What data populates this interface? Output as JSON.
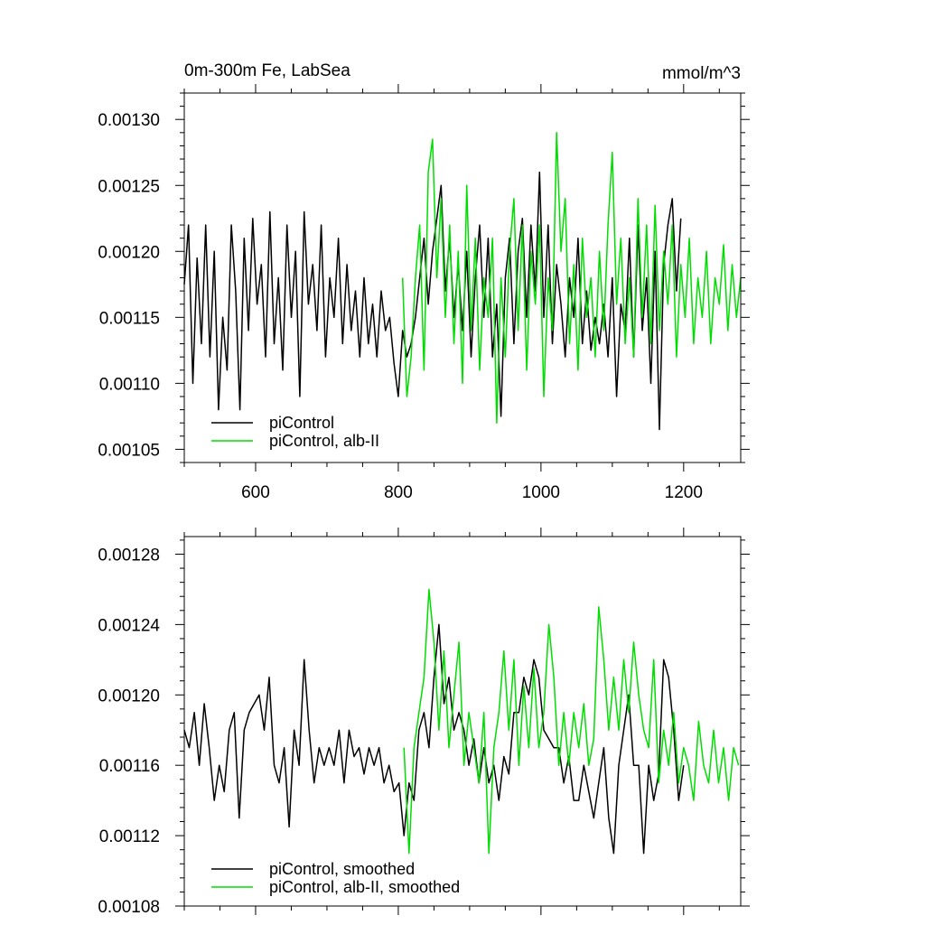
{
  "chart_data": [
    {
      "type": "line",
      "title_left": "0m-300m Fe, LabSea",
      "title_right": "mmol/m^3",
      "xlim": [
        500,
        1280
      ],
      "ylim": [
        0.00104,
        0.00132
      ],
      "x_ticks": [
        600,
        800,
        1000,
        1200
      ],
      "x_tick_labels": [
        "600",
        "800",
        "1000",
        "1200"
      ],
      "y_ticks": [
        0.00105,
        0.0011,
        0.00115,
        0.0012,
        0.00125,
        0.0013
      ],
      "y_tick_labels": [
        "0.00105",
        "0.00110",
        "0.00115",
        "0.00120",
        "0.00125",
        "0.00130"
      ],
      "grid": false,
      "legend_position": "bottom-left",
      "series": [
        {
          "name": "piControl",
          "color": "#000000",
          "x": [
            500,
            506,
            512,
            518,
            524,
            530,
            536,
            542,
            548,
            554,
            560,
            566,
            572,
            578,
            584,
            590,
            596,
            602,
            608,
            614,
            620,
            626,
            632,
            638,
            644,
            650,
            656,
            662,
            668,
            674,
            680,
            686,
            692,
            698,
            704,
            710,
            716,
            722,
            728,
            734,
            740,
            746,
            752,
            758,
            764,
            770,
            776,
            782,
            788,
            794,
            800,
            806,
            812,
            818,
            824,
            830,
            836,
            842,
            848,
            854,
            860,
            866,
            872,
            878,
            884,
            890,
            896,
            902,
            908,
            914,
            920,
            926,
            932,
            938,
            944,
            950,
            956,
            962,
            968,
            974,
            980,
            986,
            992,
            998,
            1004,
            1010,
            1016,
            1022,
            1028,
            1034,
            1040,
            1046,
            1052,
            1058,
            1064,
            1070,
            1076,
            1082,
            1088,
            1094,
            1100,
            1106,
            1112,
            1118,
            1124,
            1130,
            1136,
            1142,
            1148,
            1154,
            1160,
            1166,
            1172,
            1178,
            1184,
            1190,
            1196
          ],
          "y": [
            0.001175,
            0.00122,
            0.0011,
            0.001195,
            0.00113,
            0.00122,
            0.00112,
            0.0012,
            0.00108,
            0.00115,
            0.00111,
            0.00122,
            0.00117,
            0.00108,
            0.00121,
            0.00114,
            0.001225,
            0.00116,
            0.00119,
            0.00112,
            0.00123,
            0.00113,
            0.00118,
            0.00111,
            0.00122,
            0.00115,
            0.0012,
            0.00109,
            0.00123,
            0.00116,
            0.00119,
            0.00114,
            0.00122,
            0.00112,
            0.00118,
            0.00115,
            0.00121,
            0.00113,
            0.00119,
            0.00114,
            0.00117,
            0.00112,
            0.00118,
            0.00113,
            0.00116,
            0.00112,
            0.00117,
            0.00114,
            0.00115,
            0.001115,
            0.00109,
            0.00114,
            0.00112,
            0.00113,
            0.00115,
            0.00118,
            0.00121,
            0.00116,
            0.0012,
            0.001225,
            0.00125,
            0.00117,
            0.00121,
            0.00115,
            0.00119,
            0.00114,
            0.0012,
            0.00112,
            0.00118,
            0.00122,
            0.00115,
            0.00121,
            0.00112,
            0.00116,
            0.001075,
            0.00118,
            0.00121,
            0.00113,
            0.0012,
            0.001225,
            0.00115,
            0.00122,
            0.00117,
            0.00126,
            0.00115,
            0.00122,
            0.00113,
            0.00119,
            0.00116,
            0.00112,
            0.00118,
            0.00115,
            0.00121,
            0.00113,
            0.00117,
            0.001125,
            0.00115,
            0.00113,
            0.00116,
            0.00112,
            0.00118,
            0.00109,
            0.00116,
            0.00114,
            0.00121,
            0.00112,
            0.00122,
            0.00114,
            0.00118,
            0.0011,
            0.0012,
            0.001065,
            0.00119,
            0.00122,
            0.00124,
            0.00117,
            0.001225
          ]
        },
        {
          "name": "piControl, alb-II",
          "color": "#00dd00",
          "x": [
            806,
            812,
            818,
            824,
            830,
            836,
            842,
            848,
            854,
            860,
            866,
            872,
            878,
            884,
            890,
            896,
            902,
            908,
            914,
            920,
            926,
            932,
            938,
            944,
            950,
            956,
            962,
            968,
            974,
            980,
            986,
            992,
            998,
            1004,
            1010,
            1016,
            1022,
            1028,
            1034,
            1040,
            1046,
            1052,
            1058,
            1064,
            1070,
            1076,
            1082,
            1088,
            1094,
            1100,
            1106,
            1112,
            1118,
            1124,
            1130,
            1136,
            1142,
            1148,
            1154,
            1160,
            1166,
            1172,
            1178,
            1184,
            1190,
            1196,
            1202,
            1208,
            1214,
            1220,
            1226,
            1232,
            1238,
            1244,
            1250,
            1256,
            1262,
            1268,
            1274,
            1280
          ],
          "y": [
            0.00118,
            0.00109,
            0.00112,
            0.00118,
            0.00122,
            0.00111,
            0.00126,
            0.001285,
            0.00118,
            0.00124,
            0.00115,
            0.00122,
            0.00113,
            0.0012,
            0.0011,
            0.00125,
            0.00114,
            0.00121,
            0.00111,
            0.00118,
            0.00115,
            0.00121,
            0.00107,
            0.00118,
            0.00112,
            0.0012,
            0.00124,
            0.00114,
            0.00122,
            0.00111,
            0.0012,
            0.00116,
            0.00122,
            0.00109,
            0.00118,
            0.00114,
            0.00129,
            0.0012,
            0.00124,
            0.00113,
            0.00119,
            0.00111,
            0.00121,
            0.00115,
            0.00118,
            0.00112,
            0.0012,
            0.00114,
            0.00122,
            0.001275,
            0.00116,
            0.00121,
            0.00113,
            0.00118,
            0.00112,
            0.00124,
            0.00115,
            0.00122,
            0.00113,
            0.001235,
            0.00114,
            0.0012,
            0.00116,
            0.00122,
            0.00112,
            0.00119,
            0.00115,
            0.00121,
            0.00113,
            0.00118,
            0.00115,
            0.0012,
            0.00113,
            0.00118,
            0.00116,
            0.001205,
            0.00114,
            0.00119,
            0.00115,
            0.00118
          ]
        }
      ]
    },
    {
      "type": "line",
      "xlim": [
        500,
        1280
      ],
      "ylim": [
        0.00108,
        0.00129
      ],
      "x_ticks": [
        600,
        800,
        1000,
        1200
      ],
      "y_ticks": [
        0.00108,
        0.00112,
        0.00116,
        0.0012,
        0.00124,
        0.00128
      ],
      "y_tick_labels": [
        "0.00108",
        "0.00112",
        "0.00116",
        "0.00120",
        "0.00124",
        "0.00128"
      ],
      "grid": false,
      "legend_position": "bottom-left",
      "series": [
        {
          "name": "piControl, smoothed",
          "color": "#000000",
          "x": [
            500,
            507,
            514,
            521,
            528,
            535,
            542,
            549,
            556,
            563,
            570,
            577,
            584,
            591,
            598,
            605,
            612,
            619,
            626,
            633,
            640,
            647,
            654,
            661,
            668,
            675,
            682,
            689,
            696,
            703,
            710,
            717,
            724,
            731,
            738,
            745,
            752,
            759,
            766,
            773,
            780,
            787,
            794,
            801,
            808,
            815,
            822,
            829,
            836,
            843,
            850,
            857,
            864,
            871,
            878,
            885,
            892,
            899,
            906,
            913,
            920,
            927,
            934,
            941,
            948,
            955,
            962,
            969,
            976,
            983,
            990,
            997,
            1004,
            1011,
            1018,
            1025,
            1032,
            1039,
            1046,
            1053,
            1060,
            1067,
            1074,
            1081,
            1088,
            1095,
            1102,
            1109,
            1116,
            1123,
            1130,
            1137,
            1144,
            1151,
            1158,
            1165,
            1172,
            1179,
            1186,
            1193,
            1200
          ],
          "y": [
            0.00118,
            0.00117,
            0.00119,
            0.00116,
            0.001195,
            0.00117,
            0.00114,
            0.00116,
            0.001145,
            0.00118,
            0.00119,
            0.00113,
            0.00118,
            0.00119,
            0.001195,
            0.0012,
            0.00118,
            0.00121,
            0.00116,
            0.00115,
            0.00117,
            0.001125,
            0.00118,
            0.00116,
            0.00122,
            0.00118,
            0.00115,
            0.00117,
            0.00116,
            0.00117,
            0.00116,
            0.00118,
            0.00115,
            0.00118,
            0.001165,
            0.00117,
            0.001155,
            0.00117,
            0.00116,
            0.00117,
            0.00115,
            0.00116,
            0.001145,
            0.00115,
            0.00112,
            0.00115,
            0.00114,
            0.00118,
            0.00119,
            0.00117,
            0.00121,
            0.00124,
            0.001195,
            0.00121,
            0.00118,
            0.00119,
            0.00118,
            0.00116,
            0.001175,
            0.00115,
            0.00117,
            0.00115,
            0.00116,
            0.00114,
            0.001165,
            0.001155,
            0.00119,
            0.00119,
            0.00121,
            0.0012,
            0.00122,
            0.00121,
            0.00118,
            0.001175,
            0.00117,
            0.00117,
            0.00115,
            0.001165,
            0.00114,
            0.00114,
            0.00116,
            0.001145,
            0.00113,
            0.00115,
            0.00117,
            0.00113,
            0.00111,
            0.00116,
            0.00118,
            0.0012,
            0.00116,
            0.00116,
            0.00111,
            0.00116,
            0.00114,
            0.001155,
            0.00122,
            0.00121,
            0.00118,
            0.00114,
            0.00116
          ]
        },
        {
          "name": "piControl, alb-II, smoothed",
          "color": "#00dd00",
          "x": [
            808,
            815,
            822,
            829,
            836,
            843,
            850,
            857,
            864,
            871,
            878,
            885,
            892,
            899,
            906,
            913,
            920,
            927,
            934,
            941,
            948,
            955,
            962,
            969,
            976,
            983,
            990,
            997,
            1004,
            1011,
            1018,
            1025,
            1032,
            1039,
            1046,
            1053,
            1060,
            1067,
            1074,
            1081,
            1088,
            1095,
            1102,
            1109,
            1116,
            1123,
            1130,
            1137,
            1144,
            1151,
            1158,
            1165,
            1172,
            1179,
            1186,
            1193,
            1200,
            1207,
            1214,
            1221,
            1228,
            1235,
            1242,
            1249,
            1256,
            1263,
            1270,
            1277
          ],
          "y": [
            0.00117,
            0.00111,
            0.00117,
            0.00119,
            0.00121,
            0.00126,
            0.00123,
            0.00118,
            0.001225,
            0.00117,
            0.0012,
            0.00123,
            0.00116,
            0.00119,
            0.00117,
            0.00115,
            0.00119,
            0.00111,
            0.00117,
            0.00119,
            0.001225,
            0.00118,
            0.00122,
            0.00116,
            0.001205,
            0.00117,
            0.001215,
            0.00117,
            0.00119,
            0.00124,
            0.00121,
            0.00116,
            0.00119,
            0.00116,
            0.00119,
            0.00117,
            0.001195,
            0.00116,
            0.001175,
            0.00125,
            0.00122,
            0.00118,
            0.00121,
            0.00118,
            0.00122,
            0.00119,
            0.00123,
            0.0012,
            0.00118,
            0.00117,
            0.00122,
            0.00115,
            0.00118,
            0.00116,
            0.00119,
            0.00115,
            0.00117,
            0.00116,
            0.00114,
            0.001185,
            0.00116,
            0.00115,
            0.00118,
            0.00115,
            0.00117,
            0.00114,
            0.00117,
            0.00116
          ]
        }
      ]
    }
  ]
}
